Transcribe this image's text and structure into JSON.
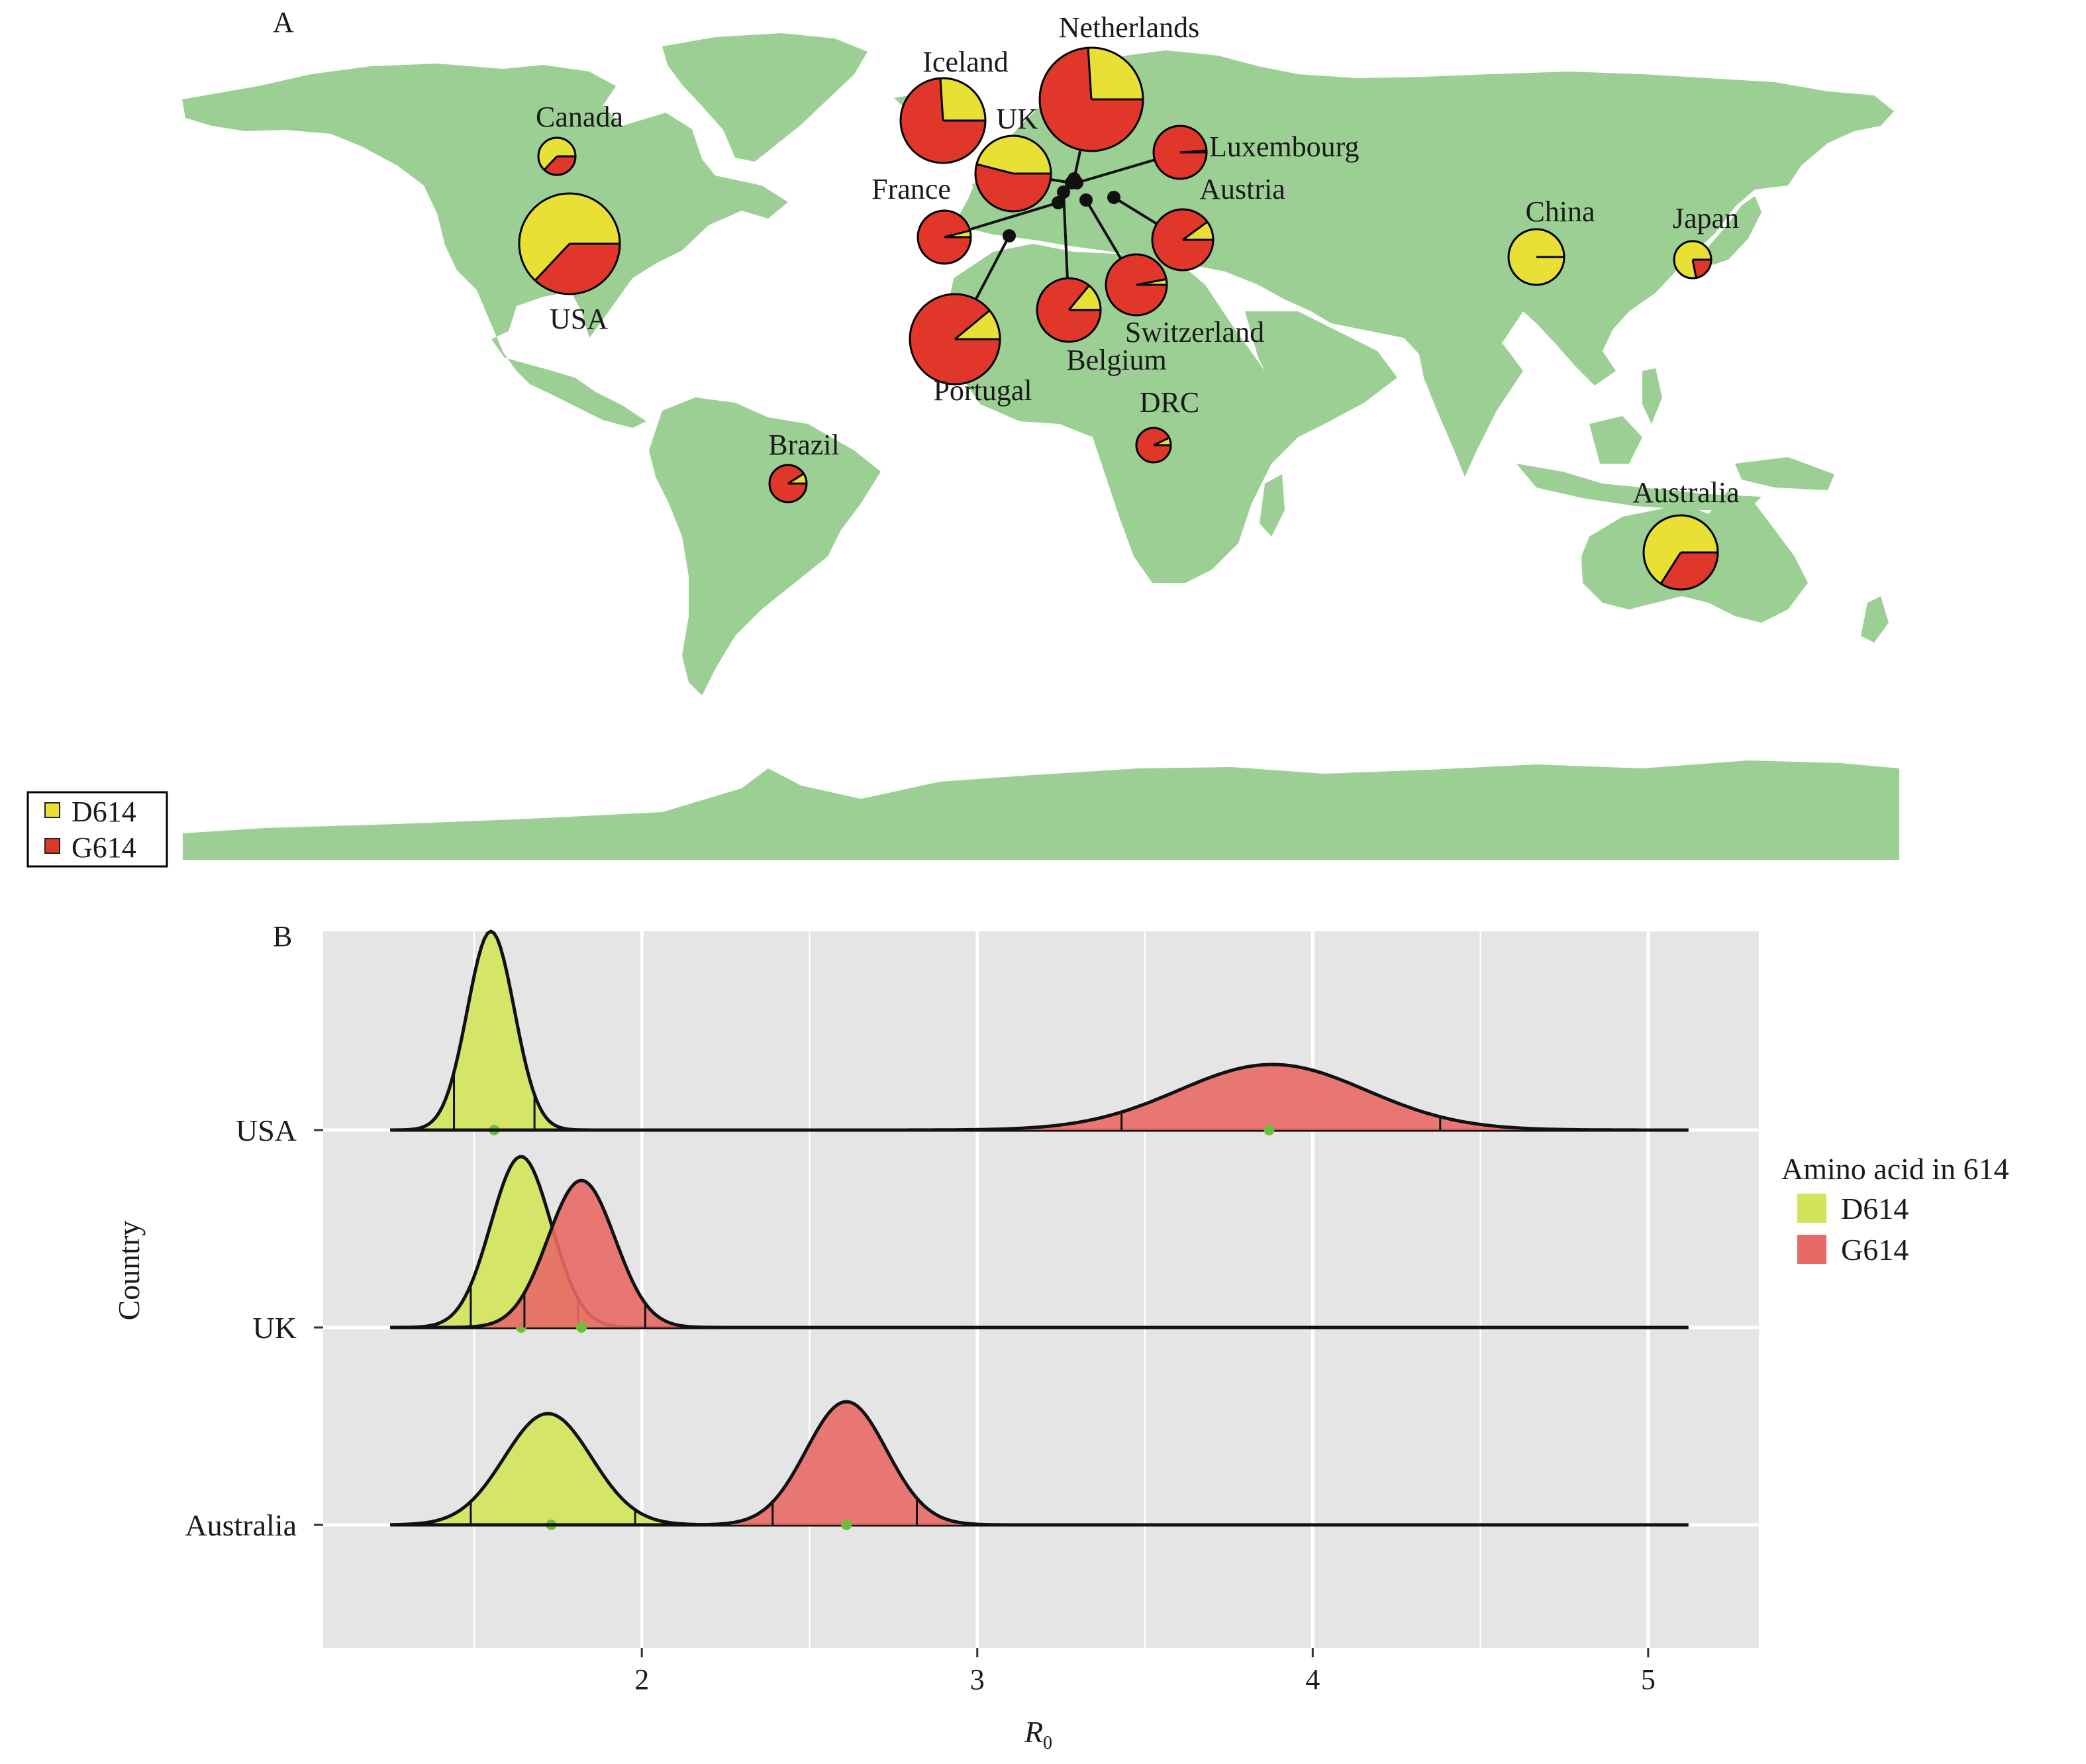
{
  "colors": {
    "land": "#9ccf94",
    "d614": "#e8e034",
    "g614": "#e0372a",
    "ridge_d614": "#d2e45a",
    "ridge_g614": "#e86a66",
    "panel_bg": "#e5e5e5",
    "grid": "#ffffff"
  },
  "panel_a": {
    "label": "A",
    "legend": [
      {
        "key": "d614",
        "label": "D614"
      },
      {
        "key": "g614",
        "label": "G614"
      }
    ],
    "countries": [
      {
        "name": "Netherlands",
        "g614_fraction": 0.74
      },
      {
        "name": "Iceland",
        "g614_fraction": 0.74
      },
      {
        "name": "UK",
        "g614_fraction": 0.54
      },
      {
        "name": "Canada",
        "g614_fraction": 0.37
      },
      {
        "name": "USA",
        "g614_fraction": 0.37
      },
      {
        "name": "Luxembourg",
        "g614_fraction": 0.99
      },
      {
        "name": "France",
        "g614_fraction": 0.96
      },
      {
        "name": "Austria",
        "g614_fraction": 0.9
      },
      {
        "name": "China",
        "g614_fraction": 0.0
      },
      {
        "name": "Japan",
        "g614_fraction": 0.22
      },
      {
        "name": "Switzerland",
        "g614_fraction": 0.97
      },
      {
        "name": "Belgium",
        "g614_fraction": 0.86
      },
      {
        "name": "Portugal",
        "g614_fraction": 0.89
      },
      {
        "name": "DRC",
        "g614_fraction": 0.93
      },
      {
        "name": "Brazil",
        "g614_fraction": 0.91
      },
      {
        "name": "Australia",
        "g614_fraction": 0.34
      }
    ]
  },
  "panel_b": {
    "label": "B",
    "chart_data": {
      "type": "ridgeline",
      "xlabel": "R",
      "xlabel_sub": "0",
      "ylabel": "Country",
      "xlim": [
        1.05,
        5.33
      ],
      "xticks": [
        2,
        3,
        4,
        5
      ],
      "grid": true,
      "legend_title": "Amino acid in 614",
      "legend": [
        {
          "key": "d614",
          "label": "D614"
        },
        {
          "key": "g614",
          "label": "G614"
        }
      ],
      "categories": [
        "USA",
        "UK",
        "Australia"
      ],
      "series": [
        {
          "country": "USA",
          "variant": "d614",
          "mean": 1.55,
          "sd": 0.07,
          "median": 1.56,
          "ci": [
            1.44,
            1.68
          ],
          "peak_height": 1.0
        },
        {
          "country": "USA",
          "variant": "g614",
          "mean": 3.88,
          "sd": 0.28,
          "median": 3.87,
          "ci": [
            3.43,
            4.38
          ],
          "peak_height": 0.33
        },
        {
          "country": "UK",
          "variant": "d614",
          "mean": 1.64,
          "sd": 0.09,
          "median": 1.64,
          "ci": [
            1.49,
            1.81
          ],
          "peak_height": 0.86
        },
        {
          "country": "UK",
          "variant": "g614",
          "mean": 1.82,
          "sd": 0.1,
          "median": 1.82,
          "ci": [
            1.65,
            2.01
          ],
          "peak_height": 0.74
        },
        {
          "country": "Australia",
          "variant": "d614",
          "mean": 1.72,
          "sd": 0.13,
          "median": 1.73,
          "ci": [
            1.49,
            1.98
          ],
          "peak_height": 0.56
        },
        {
          "country": "Australia",
          "variant": "g614",
          "mean": 2.61,
          "sd": 0.12,
          "median": 2.61,
          "ci": [
            2.39,
            2.82
          ],
          "peak_height": 0.62
        }
      ]
    }
  }
}
